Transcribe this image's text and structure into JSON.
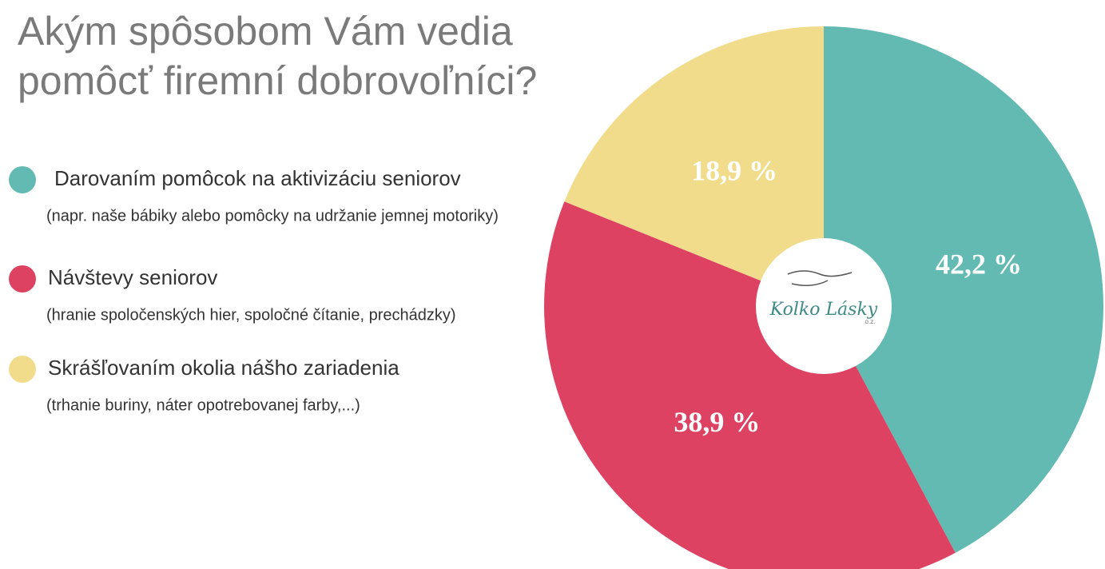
{
  "chart_data": {
    "type": "pie",
    "title": "Akým spôsobom Vám vedia pomôcť firemní dobrovoľníci?",
    "categories": [
      "Darovaním pomôcok na aktivizáciu seniorov",
      "Návštevy seniorov",
      "Skrášľovaním okolia nášho zariadenia"
    ],
    "descriptions": [
      "(napr. naše bábiky alebo pomôcky na udržanie jemnej motoriky)",
      "(hranie spoločenských hier, spoločné čítanie, prechádzky)",
      "(trhanie buriny, náter opotrebovanej farby,...)"
    ],
    "values": [
      42.2,
      38.9,
      18.9
    ],
    "value_labels": [
      "42,2 %",
      "38,9 %",
      "18,9 %"
    ],
    "colors": [
      "#62bab2",
      "#de4262",
      "#f0dc8a"
    ],
    "logo": {
      "name": "Kolko Lásky",
      "suffix": "o.z."
    }
  }
}
